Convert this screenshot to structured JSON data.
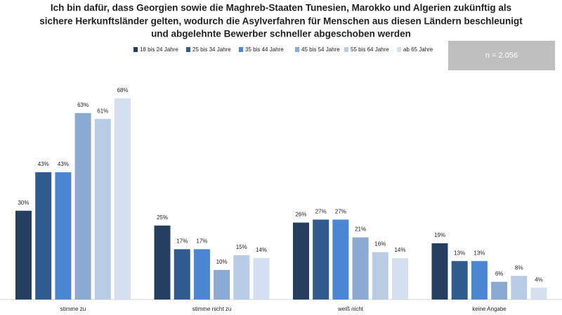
{
  "chart_data": {
    "type": "bar",
    "title": [
      "Ich bin dafür, dass Georgien sowie die Maghreb-Staaten Tunesien, Marokko und Algerien zukünftig als",
      "sichere Herkunftsländer gelten, wodurch die Asylverfahren für Menschen aus diesen Ländern beschleunigt",
      "und abgelehnte Bewerber schneller abgeschoben werden"
    ],
    "annotation": "n = 2.056",
    "categories": [
      "stimme zu",
      "stimme nicht zu",
      "weiß nicht",
      "keine Angabe"
    ],
    "series": [
      {
        "name": "18 bis 24 Jahre",
        "color": "#243f60",
        "values": [
          30,
          25,
          26,
          19
        ],
        "value_labels": [
          "30%",
          "25%",
          "26%",
          "19%"
        ]
      },
      {
        "name": "25 bis 34 Jahre",
        "color": "#2f5b8f",
        "values": [
          43,
          17,
          27,
          13
        ],
        "value_labels": [
          "43%",
          "17%",
          "27%",
          "13%"
        ]
      },
      {
        "name": "35 bis 44 Jahre",
        "color": "#4a86d4",
        "values": [
          43,
          17,
          27,
          13
        ],
        "value_labels": [
          "43%",
          "17%",
          "27%",
          "13%"
        ]
      },
      {
        "name": "45 bis 54 Jahre",
        "color": "#8aaad4",
        "values": [
          63,
          10,
          21,
          6
        ],
        "value_labels": [
          "63%",
          "10%",
          "21%",
          "6%"
        ]
      },
      {
        "name": "55 bis 64 Jahre",
        "color": "#b8cce6",
        "values": [
          61,
          15,
          16,
          8
        ],
        "value_labels": [
          "61%",
          "15%",
          "16%",
          "8%"
        ]
      },
      {
        "name": "ab 65 Jahre",
        "color": "#d4e0f0",
        "values": [
          68,
          14,
          14,
          4
        ],
        "value_labels": [
          "68%",
          "14%",
          "14%",
          "4%"
        ]
      }
    ]
  }
}
